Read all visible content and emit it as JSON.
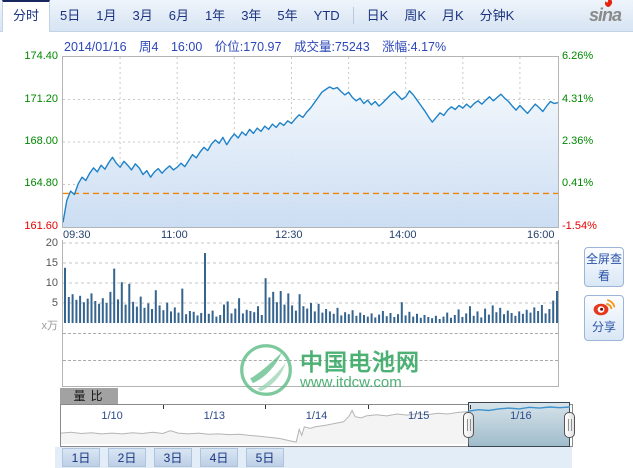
{
  "colors": {
    "price_line": "#1e82c8",
    "price_fill_top": "#f1f6fc",
    "price_fill_bottom": "#c9dcf2",
    "prev_close_line": "#f08300",
    "volume_bar": "#35648f",
    "up_green": "#008800",
    "down_red": "#e60000",
    "nav_gray_line": "#b5b5b5",
    "nav_blue_line": "#3f93cc",
    "watermark_green": "#2fa35c"
  },
  "topnav": {
    "tabs": [
      "分时",
      "5日",
      "1月",
      "3月",
      "6月",
      "1年",
      "3年",
      "5年",
      "YTD"
    ],
    "k_tabs": [
      "日K",
      "周K",
      "月K",
      "分钟K"
    ],
    "active_tab": "分时",
    "logo_text": "sina"
  },
  "info_line": {
    "date": "2014/01/16",
    "weekday": "周4",
    "time": "16:00",
    "price": "价位:170.97",
    "volume": "成交量:75243",
    "change": "涨幅:4.17%"
  },
  "side_buttons": {
    "fullscreen": "全屏查看",
    "share": "分享"
  },
  "indicator_label": "量比",
  "watermark": {
    "title": "中国电池网",
    "url": "www.itdcw.com"
  },
  "bottom_tabs": [
    "1日",
    "2日",
    "3日",
    "4日",
    "5日"
  ],
  "chart_data": [
    {
      "type": "line",
      "name": "intraday_price",
      "x_tick_labels": [
        "09:30",
        "11:00",
        "12:30",
        "14:00",
        "16:00"
      ],
      "x_total_minutes": 390,
      "x_grid_minutes": 45,
      "interval_minutes": 3,
      "ylim": [
        161.6,
        174.4
      ],
      "y_left_labels": [
        "174.40",
        "171.20",
        "168.00",
        "164.80",
        "161.60"
      ],
      "y_right_labels": [
        "6.26%",
        "4.31%",
        "2.36%",
        "0.41%",
        "-1.54%"
      ],
      "prev_close": 164.13,
      "last_price": 170.97,
      "change_pct": "4.17%",
      "prices": [
        161.95,
        163.6,
        164.3,
        164.05,
        164.85,
        165.35,
        165.1,
        165.65,
        166.05,
        165.75,
        166.25,
        165.95,
        166.45,
        166.85,
        166.4,
        166.1,
        166.55,
        166.25,
        165.9,
        166.35,
        166.05,
        165.55,
        165.85,
        165.35,
        165.75,
        166.0,
        165.65,
        165.95,
        166.2,
        165.9,
        166.1,
        166.4,
        166.15,
        166.6,
        167.05,
        166.8,
        167.25,
        167.6,
        167.35,
        167.85,
        168.15,
        167.9,
        168.35,
        167.8,
        168.25,
        168.6,
        168.3,
        168.75,
        168.5,
        168.95,
        168.65,
        169.05,
        168.8,
        169.2,
        168.95,
        169.35,
        169.1,
        169.45,
        169.25,
        169.6,
        169.4,
        169.75,
        170.05,
        169.85,
        170.25,
        170.55,
        170.95,
        171.35,
        171.75,
        171.95,
        172.15,
        172.0,
        172.1,
        171.8,
        171.55,
        171.75,
        171.35,
        171.1,
        171.3,
        170.9,
        171.15,
        170.8,
        171.05,
        170.7,
        170.95,
        171.25,
        171.55,
        171.8,
        171.5,
        171.2,
        171.4,
        171.85,
        171.55,
        171.15,
        170.75,
        170.35,
        169.9,
        169.5,
        169.85,
        170.2,
        170.0,
        170.4,
        170.65,
        170.45,
        170.75,
        170.55,
        170.85,
        170.6,
        170.9,
        171.1,
        170.85,
        171.15,
        171.4,
        171.1,
        171.35,
        171.6,
        171.3,
        171.05,
        170.7,
        170.4,
        170.75,
        170.45,
        170.15,
        170.5,
        170.85,
        170.6,
        170.3,
        170.7,
        171.05,
        170.9,
        170.97
      ]
    },
    {
      "type": "bar",
      "name": "volume",
      "unit_label": "x万",
      "y_tick_labels": [
        "20",
        "15",
        "10",
        "5"
      ],
      "y_ticks": [
        20,
        15,
        10,
        5
      ],
      "ylim": [
        0,
        20.75
      ],
      "values": [
        13.8,
        6.5,
        7.2,
        5.8,
        6.8,
        5.2,
        6.1,
        7.4,
        5.5,
        4.8,
        6.2,
        5.0,
        7.8,
        13.6,
        5.9,
        10.2,
        4.6,
        9.8,
        5.3,
        4.1,
        6.6,
        3.8,
        4.9,
        3.5,
        8.2,
        4.4,
        3.2,
        5.1,
        2.9,
        3.9,
        2.6,
        8.6,
        2.2,
        3.0,
        2.8,
        1.9,
        2.5,
        17.5,
        2.3,
        3.1,
        1.6,
        2.0,
        4.6,
        5.4,
        2.4,
        3.6,
        6.2,
        2.4,
        3.3,
        3.0,
        2.7,
        4.2,
        2.0,
        11.2,
        6.4,
        7.8,
        5.2,
        8.0,
        4.6,
        7.4,
        4.4,
        3.1,
        7.2,
        4.2,
        3.6,
        5.0,
        2.9,
        4.8,
        2.6,
        3.5,
        2.9,
        2.3,
        3.8,
        1.9,
        2.7,
        2.2,
        3.2,
        1.8,
        2.6,
        2.0,
        1.6,
        2.4,
        1.4,
        2.1,
        3.0,
        1.7,
        2.5,
        1.5,
        2.2,
        5.2,
        1.9,
        2.8,
        1.6,
        2.3,
        1.3,
        2.0,
        1.5,
        1.2,
        1.8,
        1.0,
        1.6,
        2.6,
        1.3,
        2.0,
        3.4,
        1.5,
        2.4,
        4.2,
        1.8,
        2.9,
        1.4,
        3.6,
        2.1,
        4.4,
        2.7,
        3.8,
        2.2,
        3.1,
        2.5,
        1.8,
        2.9,
        2.3,
        3.3,
        2.6,
        3.9,
        3.0,
        4.5,
        2.4,
        3.5,
        5.6,
        8.0
      ]
    },
    {
      "type": "line",
      "name": "navigator",
      "day_labels": [
        "1/10",
        "1/13",
        "1/14",
        "1/15",
        "1/16"
      ],
      "selected_day": "1/16",
      "selection_range": [
        0.8,
        1.0
      ],
      "gray_points": [
        [
          0,
          0.72
        ],
        [
          0.02,
          0.7
        ],
        [
          0.04,
          0.73
        ],
        [
          0.06,
          0.71
        ],
        [
          0.08,
          0.74
        ],
        [
          0.1,
          0.72
        ],
        [
          0.12,
          0.74
        ],
        [
          0.14,
          0.71
        ],
        [
          0.16,
          0.73
        ],
        [
          0.18,
          0.7
        ],
        [
          0.2,
          0.73
        ],
        [
          0.215,
          0.66
        ],
        [
          0.23,
          0.72
        ],
        [
          0.25,
          0.74
        ],
        [
          0.27,
          0.72
        ],
        [
          0.29,
          0.75
        ],
        [
          0.31,
          0.74
        ],
        [
          0.33,
          0.76
        ],
        [
          0.35,
          0.75
        ],
        [
          0.37,
          0.78
        ],
        [
          0.39,
          0.8
        ],
        [
          0.41,
          0.83
        ],
        [
          0.43,
          0.86
        ],
        [
          0.45,
          0.92
        ],
        [
          0.462,
          0.95
        ],
        [
          0.468,
          0.62
        ],
        [
          0.473,
          0.78
        ],
        [
          0.478,
          0.56
        ],
        [
          0.49,
          0.6
        ],
        [
          0.5,
          0.56
        ],
        [
          0.52,
          0.52
        ],
        [
          0.54,
          0.47
        ],
        [
          0.555,
          0.43
        ],
        [
          0.565,
          0.3
        ],
        [
          0.572,
          0.14
        ],
        [
          0.578,
          0.3
        ],
        [
          0.59,
          0.33
        ],
        [
          0.6,
          0.28
        ],
        [
          0.62,
          0.25
        ],
        [
          0.64,
          0.28
        ],
        [
          0.66,
          0.23
        ],
        [
          0.68,
          0.26
        ],
        [
          0.7,
          0.22
        ],
        [
          0.72,
          0.25
        ],
        [
          0.74,
          0.21
        ],
        [
          0.76,
          0.23
        ],
        [
          0.78,
          0.19
        ],
        [
          0.8,
          0.17
        ]
      ],
      "blue_points": [
        [
          0.8,
          0.16
        ],
        [
          0.82,
          0.12
        ],
        [
          0.84,
          0.14
        ],
        [
          0.86,
          0.1
        ],
        [
          0.88,
          0.08
        ],
        [
          0.9,
          0.1
        ],
        [
          0.92,
          0.06
        ],
        [
          0.94,
          0.08
        ],
        [
          0.96,
          0.05
        ],
        [
          0.98,
          0.07
        ],
        [
          1.0,
          0.05
        ]
      ]
    }
  ]
}
